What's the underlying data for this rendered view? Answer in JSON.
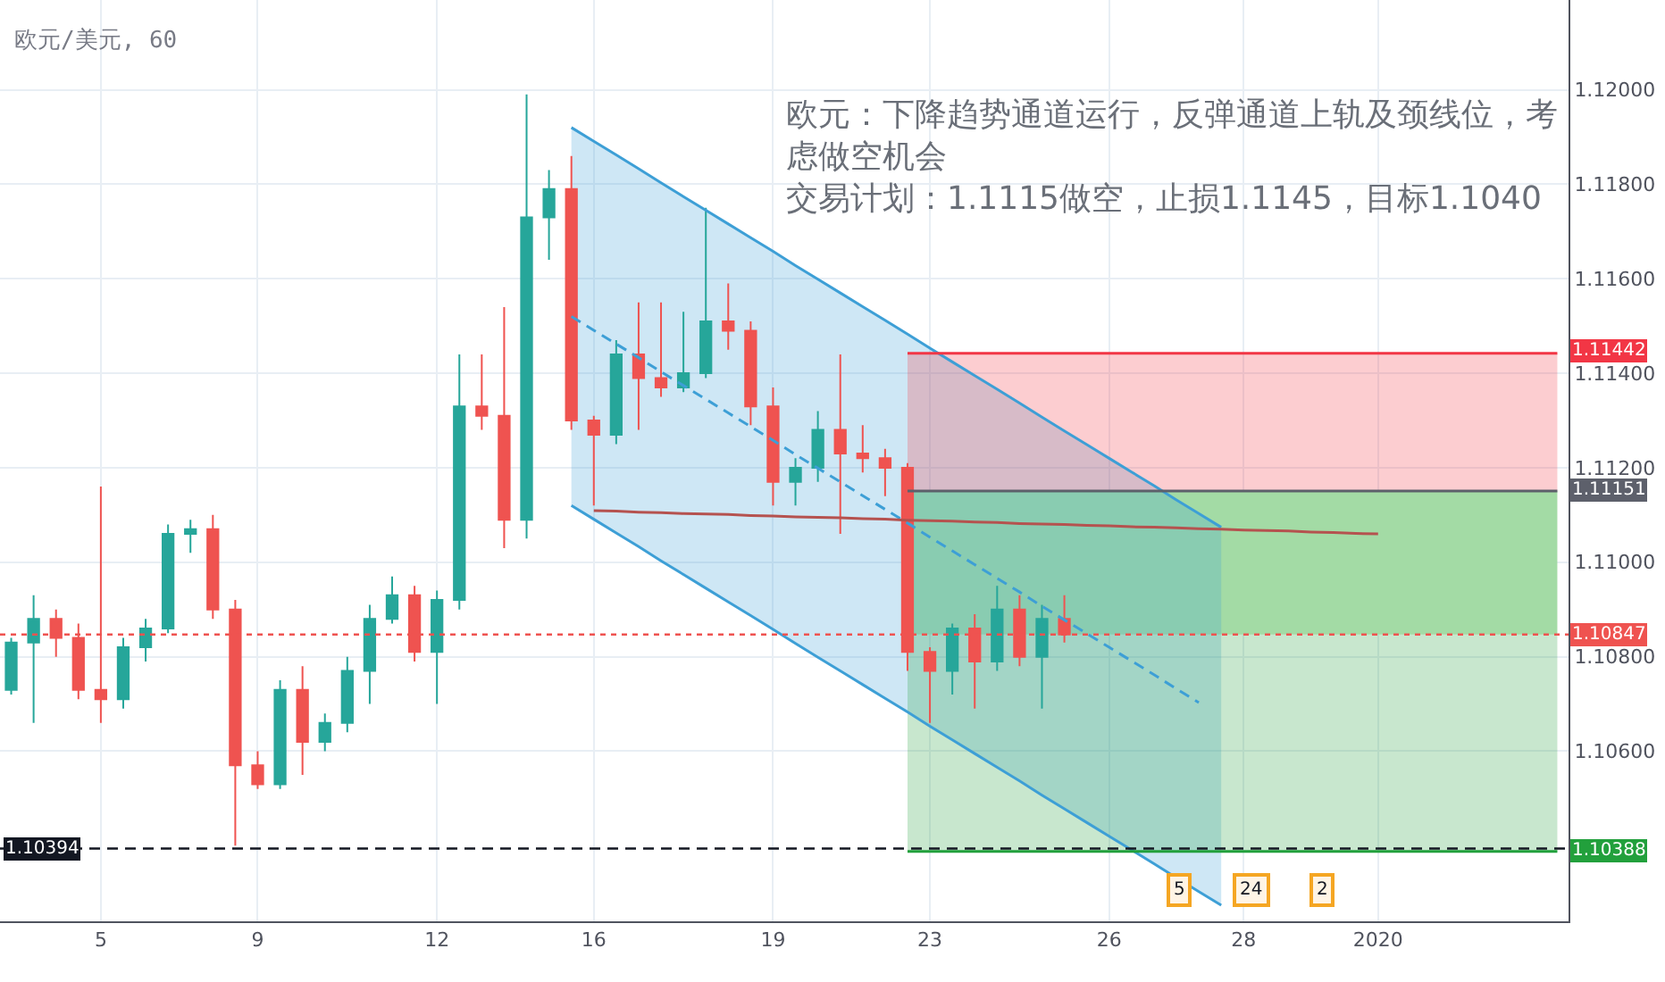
{
  "chart_data": {
    "type": "candlestick",
    "title": "欧元/美元, 60",
    "categories": [
      null,
      null,
      null,
      null,
      "5",
      null,
      null,
      null,
      null,
      null,
      null,
      "9",
      null,
      null,
      null,
      null,
      null,
      null,
      null,
      "12",
      null,
      null,
      null,
      null,
      null,
      null,
      "16",
      null,
      null,
      null,
      null,
      null,
      null,
      null,
      "19",
      null,
      null,
      null,
      null,
      null,
      null,
      "23",
      null,
      null,
      null,
      null,
      null,
      null,
      null,
      "26",
      null,
      null,
      null,
      null,
      null,
      "28",
      null,
      null,
      null,
      null,
      null,
      "2020",
      null,
      null,
      null,
      null,
      null,
      null,
      null,
      null
    ],
    "ohlc": [
      [
        1.1073,
        1.1084,
        1.1072,
        1.1083
      ],
      [
        1.1083,
        1.1093,
        1.1066,
        1.1088
      ],
      [
        1.1088,
        1.109,
        1.108,
        1.1084
      ],
      [
        1.1084,
        1.1087,
        1.1071,
        1.1073
      ],
      [
        1.1073,
        1.1116,
        1.1066,
        1.1071
      ],
      [
        1.1071,
        1.1084,
        1.1069,
        1.1082
      ],
      [
        1.1082,
        1.1088,
        1.1079,
        1.1086
      ],
      [
        1.1086,
        1.1108,
        1.1085,
        1.1106
      ],
      [
        1.1106,
        1.1109,
        1.1102,
        1.1107
      ],
      [
        1.1107,
        1.111,
        1.1088,
        1.109
      ],
      [
        1.109,
        1.1092,
        1.104,
        1.1057
      ],
      [
        1.1057,
        1.106,
        1.1052,
        1.1053
      ],
      [
        1.1053,
        1.1075,
        1.1052,
        1.1073
      ],
      [
        1.1073,
        1.1078,
        1.1055,
        1.1062
      ],
      [
        1.1062,
        1.1068,
        1.106,
        1.1066
      ],
      [
        1.1066,
        1.108,
        1.1064,
        1.1077
      ],
      [
        1.1077,
        1.1091,
        1.107,
        1.1088
      ],
      [
        1.1088,
        1.1097,
        1.1087,
        1.1093
      ],
      [
        1.1093,
        1.1095,
        1.1079,
        1.1081
      ],
      [
        1.1081,
        1.1094,
        1.107,
        1.1092
      ],
      [
        1.1092,
        1.1144,
        1.109,
        1.1133
      ],
      [
        1.1133,
        1.1144,
        1.1128,
        1.1131
      ],
      [
        1.1131,
        1.1154,
        1.1103,
        1.1109
      ],
      [
        1.1109,
        1.1199,
        1.1105,
        1.1173
      ],
      [
        1.1173,
        1.1183,
        1.1164,
        1.1179
      ],
      [
        1.1179,
        1.1186,
        1.1128,
        1.113
      ],
      [
        1.113,
        1.1131,
        1.1112,
        1.1127
      ],
      [
        1.1127,
        1.1147,
        1.1125,
        1.1144
      ],
      [
        1.1144,
        1.1155,
        1.1128,
        1.1139
      ],
      [
        1.1139,
        1.1155,
        1.1135,
        1.1137
      ],
      [
        1.1137,
        1.1153,
        1.1136,
        1.114
      ],
      [
        1.114,
        1.1175,
        1.1139,
        1.1151
      ],
      [
        1.1151,
        1.1159,
        1.1145,
        1.1149
      ],
      [
        1.1149,
        1.1151,
        1.1129,
        1.1133
      ],
      [
        1.1133,
        1.1137,
        1.1112,
        1.1117
      ],
      [
        1.1117,
        1.1122,
        1.1112,
        1.112
      ],
      [
        1.112,
        1.1132,
        1.1117,
        1.1128
      ],
      [
        1.1128,
        1.1144,
        1.1106,
        1.1123
      ],
      [
        1.1123,
        1.1129,
        1.1119,
        1.1122
      ],
      [
        1.1122,
        1.1124,
        1.1114,
        1.112
      ],
      [
        1.112,
        1.1121,
        1.1077,
        1.1081
      ],
      [
        1.1081,
        1.1082,
        1.1066,
        1.1077
      ],
      [
        1.1077,
        1.1087,
        1.1072,
        1.1086
      ],
      [
        1.1086,
        1.1089,
        1.1069,
        1.1079
      ],
      [
        1.1079,
        1.1095,
        1.1077,
        1.109
      ],
      [
        1.109,
        1.1093,
        1.1078,
        1.108
      ],
      [
        1.108,
        1.1091,
        1.1069,
        1.1088
      ],
      [
        1.1088,
        1.1093,
        1.1083,
        1.10847
      ],
      null,
      null,
      null,
      null,
      null,
      null,
      null,
      null,
      null,
      null,
      null,
      null,
      null,
      null,
      null,
      null,
      null,
      null,
      null,
      null,
      null,
      null
    ],
    "series": [
      {
        "type": "line",
        "color": "#3d9fd6",
        "values": [
          null,
          null,
          null,
          null,
          null,
          null,
          null,
          null,
          null,
          null,
          null,
          null,
          null,
          null,
          null,
          null,
          null,
          null,
          null,
          null,
          null,
          null,
          null,
          null,
          null,
          1.1192,
          1.11891,
          1.11862,
          1.11833,
          1.11803,
          1.11774,
          1.11745,
          1.11716,
          1.11687,
          1.11658,
          1.11628,
          1.11599,
          1.1157,
          1.11541,
          1.11512,
          1.11483,
          1.11453,
          1.11424,
          1.11395,
          1.11366,
          1.11337,
          1.11307,
          1.11278,
          1.11249,
          1.1122,
          1.11191,
          1.11162,
          1.11132,
          1.11103,
          1.11074,
          null,
          null,
          null,
          null,
          null,
          null,
          null,
          null,
          null,
          null,
          null,
          null,
          null,
          null,
          null
        ]
      },
      {
        "type": "line",
        "color": "#3d9fd6",
        "values": [
          null,
          null,
          null,
          null,
          null,
          null,
          null,
          null,
          null,
          null,
          null,
          null,
          null,
          null,
          null,
          null,
          null,
          null,
          null,
          null,
          null,
          null,
          null,
          null,
          null,
          1.1112,
          1.11091,
          1.11062,
          1.11033,
          1.11003,
          1.10974,
          1.10945,
          1.10916,
          1.10887,
          1.10858,
          1.10828,
          1.10799,
          1.1077,
          1.10741,
          1.10712,
          1.10683,
          1.10653,
          1.10624,
          1.10595,
          1.10566,
          1.10537,
          1.10507,
          1.10478,
          1.10449,
          1.1042,
          1.10391,
          1.10362,
          1.10332,
          1.10303,
          1.10274,
          null,
          null,
          null,
          null,
          null,
          null,
          null,
          null,
          null,
          null,
          null,
          null,
          null,
          null,
          null
        ]
      },
      {
        "type": "line",
        "color": "#3d9fd6",
        "line_style": "dashed",
        "values": [
          null,
          null,
          null,
          null,
          null,
          null,
          null,
          null,
          null,
          null,
          null,
          null,
          null,
          null,
          null,
          null,
          null,
          null,
          null,
          null,
          null,
          null,
          null,
          null,
          null,
          1.1152,
          1.11491,
          1.11462,
          1.11433,
          1.11403,
          1.11374,
          1.11345,
          1.11316,
          1.11287,
          1.11258,
          1.11228,
          1.11199,
          1.1117,
          1.11141,
          1.11112,
          1.11083,
          1.11053,
          1.11024,
          1.10995,
          1.10966,
          1.10937,
          1.10907,
          1.10878,
          1.10849,
          1.1082,
          1.10791,
          1.10762,
          1.10732,
          1.10703,
          null,
          null,
          null,
          null,
          null,
          null,
          null,
          null,
          null,
          null,
          null,
          null,
          null,
          null,
          null,
          null
        ],
        "lower": [
          null,
          null,
          null,
          null,
          null,
          null,
          null,
          null,
          null,
          null,
          null,
          null,
          null,
          null,
          null,
          null,
          null,
          null,
          null,
          null,
          null,
          null,
          null,
          null,
          null,
          1.1112,
          1.11091,
          1.11062,
          1.11033,
          1.11003,
          1.10974,
          1.10945,
          1.10916,
          1.10887,
          1.10858,
          1.10828,
          1.10799,
          1.1077,
          1.10741,
          1.10712,
          1.10683,
          1.10653,
          1.10624,
          1.10595,
          1.10566,
          1.10537,
          1.10507,
          1.10478,
          1.10449,
          1.1042,
          1.10391,
          1.10362,
          1.10332,
          1.10303,
          1.10274,
          null,
          null,
          null,
          null,
          null,
          null,
          null,
          null,
          null,
          null,
          null,
          null,
          null,
          null,
          null
        ],
        "upper": [
          null,
          null,
          null,
          null,
          null,
          null,
          null,
          null,
          null,
          null,
          null,
          null,
          null,
          null,
          null,
          null,
          null,
          null,
          null,
          null,
          null,
          null,
          null,
          null,
          null,
          1.1192,
          1.11891,
          1.11862,
          1.11833,
          1.11803,
          1.11774,
          1.11745,
          1.11716,
          1.11687,
          1.11658,
          1.11628,
          1.11599,
          1.1157,
          1.11541,
          1.11512,
          1.11483,
          1.11453,
          1.11424,
          1.11395,
          1.11366,
          1.11337,
          1.11307,
          1.11278,
          1.11249,
          1.1122,
          1.11191,
          1.11162,
          1.11132,
          1.11103,
          1.11074,
          null,
          null,
          null,
          null,
          null,
          null,
          null,
          null,
          null,
          null,
          null,
          null,
          null,
          null,
          null
        ]
      },
      {
        "type": "line",
        "color": "#b5524f",
        "values": [
          null,
          null,
          null,
          null,
          null,
          null,
          null,
          null,
          null,
          null,
          null,
          null,
          null,
          null,
          null,
          null,
          null,
          null,
          null,
          null,
          null,
          null,
          null,
          null,
          null,
          null,
          1.11109,
          1.11108,
          1.11106,
          1.11105,
          1.11103,
          1.11102,
          1.11101,
          1.11099,
          1.11098,
          1.11096,
          1.11095,
          1.11094,
          1.11092,
          1.11091,
          1.11089,
          1.11088,
          1.11087,
          1.11085,
          1.11084,
          1.11082,
          1.11081,
          1.1108,
          1.11078,
          1.11077,
          1.11075,
          1.11074,
          1.11073,
          1.11071,
          1.1107,
          1.11068,
          1.11067,
          1.11066,
          1.11064,
          1.11063,
          1.11061,
          1.1106,
          null,
          null,
          null,
          null,
          null,
          null,
          null,
          null
        ]
      },
      {
        "type": "line",
        "color": "#f23645",
        "values": [
          null,
          null,
          null,
          null,
          null,
          null,
          null,
          null,
          null,
          null,
          null,
          null,
          null,
          null,
          null,
          null,
          null,
          null,
          null,
          null,
          null,
          null,
          null,
          null,
          null,
          null,
          null,
          null,
          null,
          null,
          null,
          null,
          null,
          null,
          null,
          null,
          null,
          null,
          null,
          null,
          1.11442,
          1.11442,
          1.11442,
          1.11442,
          1.11442,
          1.11442,
          1.11442,
          1.11442,
          1.11442,
          1.11442,
          1.11442,
          1.11442,
          1.11442,
          1.11442,
          1.11442,
          1.11442,
          1.11442,
          1.11442,
          1.11442,
          1.11442,
          1.11442,
          1.11442,
          1.11442,
          1.11442,
          1.11442,
          1.11442,
          1.11442,
          1.11442,
          1.11442,
          1.11442
        ],
        "lower": [
          null,
          null,
          null,
          null,
          null,
          null,
          null,
          null,
          null,
          null,
          null,
          null,
          null,
          null,
          null,
          null,
          null,
          null,
          null,
          null,
          null,
          null,
          null,
          null,
          null,
          null,
          null,
          null,
          null,
          null,
          null,
          null,
          null,
          null,
          null,
          null,
          null,
          null,
          null,
          null,
          1.11151,
          1.11151,
          1.11151,
          1.11151,
          1.11151,
          1.11151,
          1.11151,
          1.11151,
          1.11151,
          1.11151,
          1.11151,
          1.11151,
          1.11151,
          1.11151,
          1.11151,
          1.11151,
          1.11151,
          1.11151,
          1.11151,
          1.11151,
          1.11151,
          1.11151,
          1.11151,
          1.11151,
          1.11151,
          1.11151,
          1.11151,
          1.11151,
          1.11151,
          1.11151
        ],
        "upper": [
          null,
          null,
          null,
          null,
          null,
          null,
          null,
          null,
          null,
          null,
          null,
          null,
          null,
          null,
          null,
          null,
          null,
          null,
          null,
          null,
          null,
          null,
          null,
          null,
          null,
          null,
          null,
          null,
          null,
          null,
          null,
          null,
          null,
          null,
          null,
          null,
          null,
          null,
          null,
          null,
          1.11442,
          1.11442,
          1.11442,
          1.11442,
          1.11442,
          1.11442,
          1.11442,
          1.11442,
          1.11442,
          1.11442,
          1.11442,
          1.11442,
          1.11442,
          1.11442,
          1.11442,
          1.11442,
          1.11442,
          1.11442,
          1.11442,
          1.11442,
          1.11442,
          1.11442,
          1.11442,
          1.11442,
          1.11442,
          1.11442,
          1.11442,
          1.11442,
          1.11442,
          1.11442
        ],
        "value_labels": [
          null,
          null,
          null,
          null,
          null,
          null,
          null,
          null,
          null,
          null,
          null,
          null,
          null,
          null,
          null,
          null,
          null,
          null,
          null,
          null,
          null,
          null,
          null,
          null,
          null,
          null,
          null,
          null,
          null,
          null,
          null,
          null,
          null,
          null,
          null,
          null,
          null,
          null,
          null,
          null,
          null,
          null,
          null,
          null,
          null,
          null,
          null,
          null,
          null,
          null,
          null,
          null,
          null,
          null,
          null,
          null,
          null,
          null,
          null,
          null,
          null,
          null,
          null,
          null,
          null,
          null,
          null,
          null,
          null,
          "1.11442"
        ]
      },
      {
        "type": "line",
        "color": "#a3dba5",
        "values": [
          null,
          null,
          null,
          null,
          null,
          null,
          null,
          null,
          null,
          null,
          null,
          null,
          null,
          null,
          null,
          null,
          null,
          null,
          null,
          null,
          null,
          null,
          null,
          null,
          null,
          null,
          null,
          null,
          null,
          null,
          null,
          null,
          null,
          null,
          null,
          null,
          null,
          null,
          null,
          null,
          null,
          null,
          null,
          null,
          null,
          null,
          null,
          null,
          null,
          null,
          null,
          null,
          null,
          null,
          null,
          null,
          null,
          null,
          null,
          null,
          null,
          null,
          null,
          null,
          null,
          null,
          null,
          null,
          null,
          null
        ],
        "lower": [
          null,
          null,
          null,
          null,
          null,
          null,
          null,
          null,
          null,
          null,
          null,
          null,
          null,
          null,
          null,
          null,
          null,
          null,
          null,
          null,
          null,
          null,
          null,
          null,
          null,
          null,
          null,
          null,
          null,
          null,
          null,
          null,
          null,
          null,
          null,
          null,
          null,
          null,
          null,
          null,
          1.10847,
          1.10847,
          1.10847,
          1.10847,
          1.10847,
          1.10847,
          1.10847,
          1.10847,
          1.10847,
          1.10847,
          1.10847,
          1.10847,
          1.10847,
          1.10847,
          1.10847,
          1.10847,
          1.10847,
          1.10847,
          1.10847,
          1.10847,
          1.10847,
          1.10847,
          1.10847,
          1.10847,
          1.10847,
          1.10847,
          1.10847,
          1.10847,
          1.10847,
          1.10847
        ],
        "upper": [
          null,
          null,
          null,
          null,
          null,
          null,
          null,
          null,
          null,
          null,
          null,
          null,
          null,
          null,
          null,
          null,
          null,
          null,
          null,
          null,
          null,
          null,
          null,
          null,
          null,
          null,
          null,
          null,
          null,
          null,
          null,
          null,
          null,
          null,
          null,
          null,
          null,
          null,
          null,
          null,
          1.11151,
          1.11151,
          1.11151,
          1.11151,
          1.11151,
          1.11151,
          1.11151,
          1.11151,
          1.11151,
          1.11151,
          1.11151,
          1.11151,
          1.11151,
          1.11151,
          1.11151,
          1.11151,
          1.11151,
          1.11151,
          1.11151,
          1.11151,
          1.11151,
          1.11151,
          1.11151,
          1.11151,
          1.11151,
          1.11151,
          1.11151,
          1.11151,
          1.11151,
          1.11151
        ]
      },
      {
        "type": "line",
        "color": "#22a03c",
        "values": [
          null,
          null,
          null,
          null,
          null,
          null,
          null,
          null,
          null,
          null,
          null,
          null,
          null,
          null,
          null,
          null,
          null,
          null,
          null,
          null,
          null,
          null,
          null,
          null,
          null,
          null,
          null,
          null,
          null,
          null,
          null,
          null,
          null,
          null,
          null,
          null,
          null,
          null,
          null,
          null,
          1.10388,
          1.10388,
          1.10388,
          1.10388,
          1.10388,
          1.10388,
          1.10388,
          1.10388,
          1.10388,
          1.10388,
          1.10388,
          1.10388,
          1.10388,
          1.10388,
          1.10388,
          1.10388,
          1.10388,
          1.10388,
          1.10388,
          1.10388,
          1.10388,
          1.10388,
          1.10388,
          1.10388,
          1.10388,
          1.10388,
          1.10388,
          1.10388,
          1.10388,
          1.10388
        ],
        "lower": [
          null,
          null,
          null,
          null,
          null,
          null,
          null,
          null,
          null,
          null,
          null,
          null,
          null,
          null,
          null,
          null,
          null,
          null,
          null,
          null,
          null,
          null,
          null,
          null,
          null,
          null,
          null,
          null,
          null,
          null,
          null,
          null,
          null,
          null,
          null,
          null,
          null,
          null,
          null,
          null,
          1.10388,
          1.10388,
          1.10388,
          1.10388,
          1.10388,
          1.10388,
          1.10388,
          1.10388,
          1.10388,
          1.10388,
          1.10388,
          1.10388,
          1.10388,
          1.10388,
          1.10388,
          1.10388,
          1.10388,
          1.10388,
          1.10388,
          1.10388,
          1.10388,
          1.10388,
          1.10388,
          1.10388,
          1.10388,
          1.10388,
          1.10388,
          1.10388,
          1.10388,
          1.10388
        ],
        "upper": [
          null,
          null,
          null,
          null,
          null,
          null,
          null,
          null,
          null,
          null,
          null,
          null,
          null,
          null,
          null,
          null,
          null,
          null,
          null,
          null,
          null,
          null,
          null,
          null,
          null,
          null,
          null,
          null,
          null,
          null,
          null,
          null,
          null,
          null,
          null,
          null,
          null,
          null,
          null,
          null,
          1.10847,
          1.10847,
          1.10847,
          1.10847,
          1.10847,
          1.10847,
          1.10847,
          1.10847,
          1.10847,
          1.10847,
          1.10847,
          1.10847,
          1.10847,
          1.10847,
          1.10847,
          1.10847,
          1.10847,
          1.10847,
          1.10847,
          1.10847,
          1.10847,
          1.10847,
          1.10847,
          1.10847,
          1.10847,
          1.10847,
          1.10847,
          1.10847,
          1.10847,
          1.10847
        ],
        "value_labels": [
          null,
          null,
          null,
          null,
          null,
          null,
          null,
          null,
          null,
          null,
          null,
          null,
          null,
          null,
          null,
          null,
          null,
          null,
          null,
          null,
          null,
          null,
          null,
          null,
          null,
          null,
          null,
          null,
          null,
          null,
          null,
          null,
          null,
          null,
          null,
          null,
          null,
          null,
          null,
          null,
          null,
          null,
          null,
          null,
          null,
          null,
          null,
          null,
          null,
          null,
          null,
          null,
          null,
          null,
          null,
          null,
          null,
          null,
          null,
          null,
          null,
          null,
          null,
          null,
          null,
          null,
          null,
          null,
          null,
          "1.10388"
        ]
      },
      {
        "type": "line",
        "color": "#5d606b",
        "values": [
          null,
          null,
          null,
          null,
          null,
          null,
          null,
          null,
          null,
          null,
          null,
          null,
          null,
          null,
          null,
          null,
          null,
          null,
          null,
          null,
          null,
          null,
          null,
          null,
          null,
          null,
          null,
          null,
          null,
          null,
          null,
          null,
          null,
          null,
          null,
          null,
          null,
          null,
          null,
          null,
          1.11151,
          1.11151,
          1.11151,
          1.11151,
          1.11151,
          1.11151,
          1.11151,
          1.11151,
          1.11151,
          1.11151,
          1.11151,
          1.11151,
          1.11151,
          1.11151,
          1.11151,
          1.11151,
          1.11151,
          1.11151,
          1.11151,
          1.11151,
          1.11151,
          1.11151,
          1.11151,
          1.11151,
          1.11151,
          1.11151,
          1.11151,
          1.11151,
          1.11151,
          1.11151
        ],
        "value_labels": [
          null,
          null,
          null,
          null,
          null,
          null,
          null,
          null,
          null,
          null,
          null,
          null,
          null,
          null,
          null,
          null,
          null,
          null,
          null,
          null,
          null,
          null,
          null,
          null,
          null,
          null,
          null,
          null,
          null,
          null,
          null,
          null,
          null,
          null,
          null,
          null,
          null,
          null,
          null,
          null,
          null,
          null,
          null,
          null,
          null,
          null,
          null,
          null,
          null,
          null,
          null,
          null,
          null,
          null,
          null,
          null,
          null,
          null,
          null,
          null,
          null,
          null,
          null,
          null,
          null,
          null,
          null,
          null,
          null,
          "1.11151"
        ]
      }
    ],
    "ref_lines": [
      {
        "axis": "y",
        "value": 1.10847,
        "label": "1.10847",
        "color": "#ef5350",
        "line_style": "dotted"
      },
      {
        "axis": "y",
        "value": 1.10394,
        "label": "1.10394",
        "color": "#131722",
        "line_style": "dashed"
      }
    ],
    "annotations": [
      "欧元：下降趋势通道运行，反弹通道上轨及颈线位，考虑做空机会",
      "交易计划：1.1115做空，止损1.1145，目标1.1040",
      "5",
      "24",
      "2"
    ],
    "ylim": [
      1.1024,
      1.1219
    ],
    "yticks": [
      {
        "value": 1.106,
        "label": "1.10600"
      },
      {
        "value": 1.108,
        "label": "1.10800"
      },
      {
        "value": 1.11,
        "label": "1.11000"
      },
      {
        "value": 1.112,
        "label": "1.11200"
      },
      {
        "value": 1.114,
        "label": "1.11400"
      },
      {
        "value": 1.116,
        "label": "1.11600"
      },
      {
        "value": 1.118,
        "label": "1.11800"
      },
      {
        "value": 1.12,
        "label": "1.12000"
      }
    ],
    "grid": true
  }
}
